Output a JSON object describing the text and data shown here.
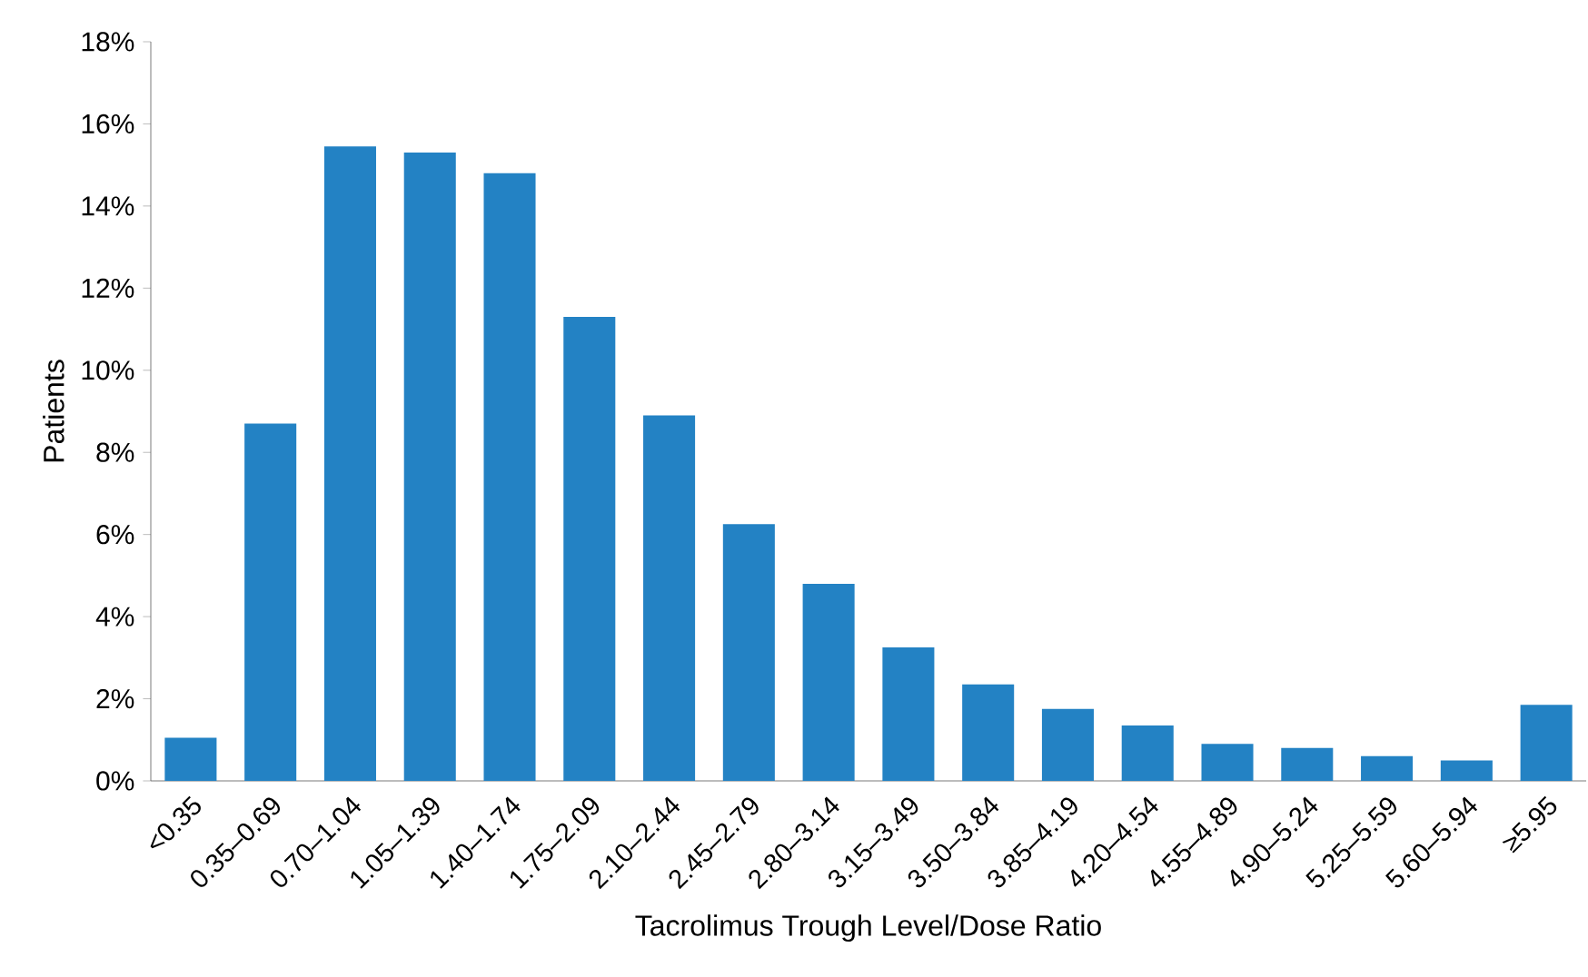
{
  "chart_data": {
    "type": "bar",
    "xlabel": "Tacrolimus Trough Level/Dose Ratio",
    "ylabel": "Patients",
    "categories": [
      "<0.35",
      "0.35–0.69",
      "0.70–1.04",
      "1.05–1.39",
      "1.40–1.74",
      "1.75–2.09",
      "2.10–2.44",
      "2.45–2.79",
      "2.80–3.14",
      "3.15–3.49",
      "3.50–3.84",
      "3.85–4.19",
      "4.20–4.54",
      "4.55–4.89",
      "4.90–5.24",
      "5.25–5.59",
      "5.60–5.94",
      "≥5.95"
    ],
    "values": [
      1.05,
      8.7,
      15.45,
      15.3,
      14.8,
      11.3,
      8.9,
      6.25,
      4.8,
      3.25,
      2.35,
      1.75,
      1.35,
      0.9,
      0.8,
      0.6,
      0.5,
      1.85
    ],
    "color": "#2382c4",
    "ylim": [
      0,
      18
    ],
    "yticks": [
      {
        "value": 0,
        "label": "0%"
      },
      {
        "value": 2,
        "label": "2%"
      },
      {
        "value": 4,
        "label": "4%"
      },
      {
        "value": 6,
        "label": "6%"
      },
      {
        "value": 8,
        "label": "8%"
      },
      {
        "value": 10,
        "label": "10%"
      },
      {
        "value": 12,
        "label": "12%"
      },
      {
        "value": 14,
        "label": "14%"
      },
      {
        "value": 16,
        "label": "16%"
      },
      {
        "value": 18,
        "label": "18%"
      }
    ],
    "grid": false
  }
}
